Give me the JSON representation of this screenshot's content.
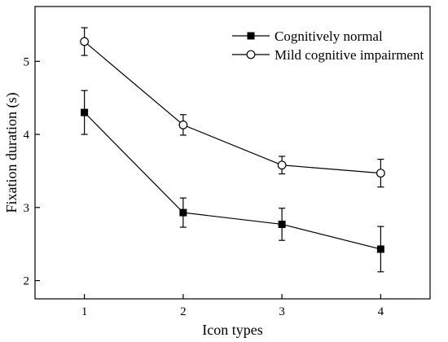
{
  "chart_data": {
    "type": "line",
    "title": "",
    "xlabel": "Icon types",
    "ylabel": "Fixation duration (s)",
    "x": [
      1,
      2,
      3,
      4
    ],
    "xlim": [
      0.5,
      4.5
    ],
    "ylim": [
      1.75,
      5.75
    ],
    "xticks": [
      1,
      2,
      3,
      4
    ],
    "yticks": [
      2,
      3,
      4,
      5
    ],
    "grid": false,
    "legend_position": "top-right",
    "series": [
      {
        "name": "Cognitively normal",
        "marker": "filled-square",
        "color": "#000000",
        "values": [
          4.3,
          2.93,
          2.77,
          2.43
        ],
        "error": [
          0.3,
          0.2,
          0.22,
          0.31
        ]
      },
      {
        "name": "Mild cognitive impairment",
        "marker": "open-circle",
        "color": "#000000",
        "values": [
          5.27,
          4.13,
          3.58,
          3.47
        ],
        "error": [
          0.19,
          0.14,
          0.12,
          0.19
        ]
      }
    ]
  }
}
